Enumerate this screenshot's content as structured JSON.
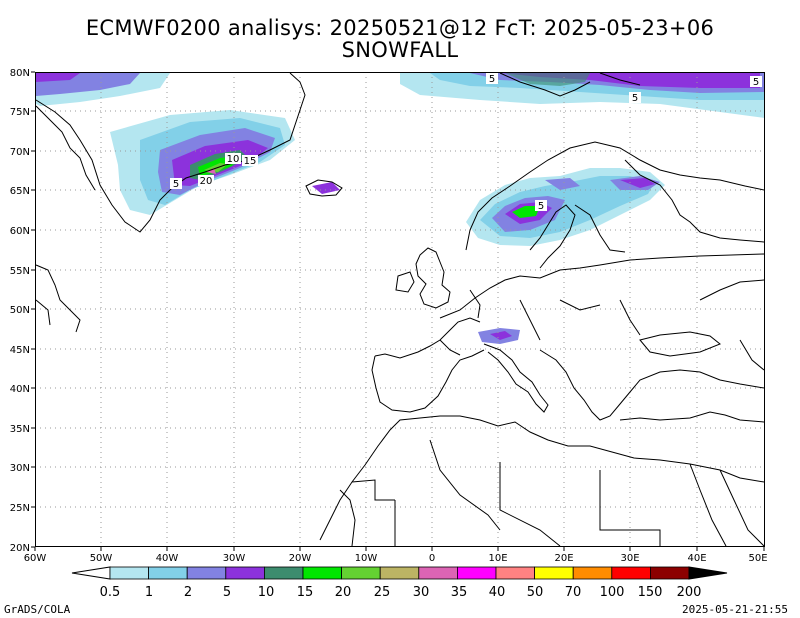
{
  "title_line1": "ECMWF0200 analisys: 20250521@12 FcT: 2025-05-23+06",
  "title_line2": "SNOWFALL",
  "lat_labels": [
    "80N",
    "75N",
    "70N",
    "65N",
    "60N",
    "55N",
    "50N",
    "45N",
    "40N",
    "35N",
    "30N",
    "25N",
    "20N"
  ],
  "lon_labels": [
    "60W",
    "50W",
    "40W",
    "30W",
    "20W",
    "10W",
    "0",
    "10E",
    "20E",
    "30E",
    "40E",
    "50E"
  ],
  "contour_labels": [
    {
      "text": "5",
      "where": "north-polar-a"
    },
    {
      "text": "5",
      "where": "north-polar-b"
    },
    {
      "text": "5",
      "where": "north-polar-c"
    },
    {
      "text": "10",
      "where": "east-greenland"
    },
    {
      "text": "15",
      "where": "east-greenland"
    },
    {
      "text": "20",
      "where": "east-greenland"
    },
    {
      "text": "5",
      "where": "east-greenland"
    },
    {
      "text": "5",
      "where": "norway"
    }
  ],
  "colorbar": {
    "labels": [
      "0.5",
      "1",
      "2",
      "5",
      "10",
      "15",
      "20",
      "25",
      "30",
      "35",
      "40",
      "50",
      "70",
      "100",
      "150",
      "200"
    ],
    "colors": [
      "#b4e6f0",
      "#82d0e8",
      "#8282e2",
      "#8c32dc",
      "#3c8c6e",
      "#00e600",
      "#64d232",
      "#bcb464",
      "#dc64b4",
      "#ff00ff",
      "#ff8282",
      "#ffff00",
      "#ff8c00",
      "#ff0000",
      "#8c0000"
    ],
    "arrow_low": "#ffffff",
    "arrow_high": "#000000"
  },
  "footer_left": "GrADS/COLA",
  "footer_right": "2025-05-21-21:55"
}
